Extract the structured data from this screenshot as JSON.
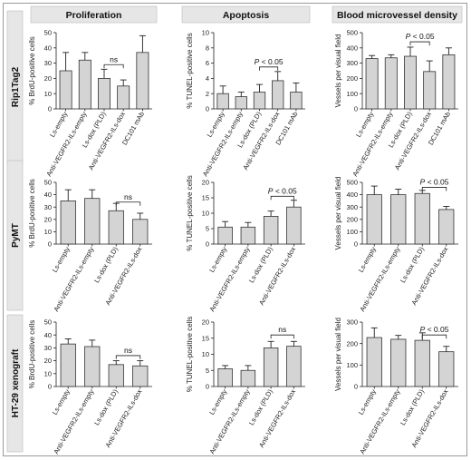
{
  "column_headers": [
    "Proliferation",
    "Apoptosis",
    "Blood microvessel density"
  ],
  "row_labels": [
    "Rip1Tag2",
    "PyMT",
    "HT-29 xenograft"
  ],
  "colors": {
    "bar_fill": "#d4d4d4",
    "bar_stroke": "#333333",
    "header_fill": "#e6e6e6",
    "row_fill": "#e6e6e6"
  },
  "chart_data": [
    {
      "type": "bar",
      "row": 0,
      "col": 0,
      "ylabel": "% BrdU-positive cells",
      "ylim": [
        0,
        50
      ],
      "yticks": [
        0,
        10,
        20,
        30,
        40,
        50
      ],
      "categories": [
        "Ls-empty",
        "Anti-VEGFR2-ILs-empty",
        "Ls-dox (PLD)",
        "Anti-VEGFR2-ILs-dox",
        "DC101 mAb"
      ],
      "values": [
        25,
        32,
        20,
        15,
        37
      ],
      "errors": [
        12,
        5,
        6,
        4,
        11
      ],
      "annotation": {
        "text": "ns",
        "from": 2,
        "to": 3,
        "y": 29,
        "italic_p": false
      }
    },
    {
      "type": "bar",
      "row": 0,
      "col": 1,
      "ylabel": "% TUNEL-positive cells",
      "ylim": [
        0,
        10
      ],
      "yticks": [
        0,
        2,
        4,
        6,
        8,
        10
      ],
      "categories": [
        "Ls-empty",
        "Anti-VEGFR2-ILs-empty",
        "Ls-dox (PLD)",
        "Anti-VEGFR2-ILs-dox",
        "DC101 mAb"
      ],
      "values": [
        2.0,
        1.6,
        2.2,
        3.7,
        2.2
      ],
      "errors": [
        1.0,
        0.6,
        1.0,
        1.2,
        1.2
      ],
      "annotation": {
        "text": "P < 0.05",
        "from": 2,
        "to": 3,
        "y": 5.5,
        "italic_p": true
      }
    },
    {
      "type": "bar",
      "row": 0,
      "col": 2,
      "ylabel": "Vessels per visual field",
      "ylim": [
        0,
        500
      ],
      "yticks": [
        0,
        100,
        200,
        300,
        400,
        500
      ],
      "categories": [
        "Ls-empty",
        "Anti-VEGFR2-ILs-empty",
        "Ls-dox (PLD)",
        "Anti-VEGFR2-ILs-dox",
        "DC101 mAb"
      ],
      "values": [
        330,
        335,
        345,
        245,
        355
      ],
      "errors": [
        20,
        20,
        60,
        70,
        45
      ],
      "annotation": {
        "text": "P < 0.05",
        "from": 2,
        "to": 3,
        "y": 440,
        "italic_p": true
      }
    },
    {
      "type": "bar",
      "row": 1,
      "col": 0,
      "ylabel": "% BrdU-positive cells",
      "ylim": [
        0,
        50
      ],
      "yticks": [
        0,
        10,
        20,
        30,
        40,
        50
      ],
      "categories": [
        "Ls-empty",
        "Anti-VEGFR2-ILs-empty",
        "Ls-dox (PLD)",
        "Anti-VEGFR2-ILs-dox"
      ],
      "values": [
        35,
        37,
        27,
        20
      ],
      "errors": [
        9,
        7,
        6,
        5
      ],
      "annotation": {
        "text": "ns",
        "from": 2,
        "to": 3,
        "y": 34,
        "italic_p": false
      }
    },
    {
      "type": "bar",
      "row": 1,
      "col": 1,
      "ylabel": "% TUNEL-positive cells",
      "ylim": [
        0,
        20
      ],
      "yticks": [
        0,
        5,
        10,
        15,
        20
      ],
      "categories": [
        "Ls-empty",
        "Anti-VEGFR2-ILs-empty",
        "Ls-dox (PLD)",
        "Anti-VEGFR2-ILs-dox"
      ],
      "values": [
        5.5,
        5.5,
        9.0,
        12.0
      ],
      "errors": [
        1.8,
        1.5,
        1.7,
        2.2
      ],
      "annotation": {
        "text": "P < 0.05",
        "from": 2,
        "to": 3,
        "y": 15.5,
        "italic_p": true
      }
    },
    {
      "type": "bar",
      "row": 1,
      "col": 2,
      "ylabel": "Vessels per visual field",
      "ylim": [
        0,
        500
      ],
      "yticks": [
        0,
        100,
        200,
        300,
        400,
        500
      ],
      "categories": [
        "Ls-empty",
        "Anti-VEGFR2-ILs-empty",
        "Ls-dox (PLD)",
        "Anti-VEGFR2-ILs-dox"
      ],
      "values": [
        400,
        400,
        410,
        280
      ],
      "errors": [
        70,
        45,
        25,
        25
      ],
      "annotation": {
        "text": "P < 0.05",
        "from": 2,
        "to": 3,
        "y": 460,
        "italic_p": true
      }
    },
    {
      "type": "bar",
      "row": 2,
      "col": 0,
      "ylabel": "% BrdU-positive cells",
      "ylim": [
        0,
        50
      ],
      "yticks": [
        0,
        10,
        20,
        30,
        40,
        50
      ],
      "categories": [
        "Ls-empty",
        "Anti-VEGFR2-ILs-empty",
        "Ls-dox (PLD)",
        "Anti-VEGFR2-ILs-dox"
      ],
      "values": [
        33,
        31,
        17,
        16
      ],
      "errors": [
        4,
        5,
        3,
        4
      ],
      "annotation": {
        "text": "ns",
        "from": 2,
        "to": 3,
        "y": 24,
        "italic_p": false
      }
    },
    {
      "type": "bar",
      "row": 2,
      "col": 1,
      "ylabel": "% TUNEL-positive cells",
      "ylim": [
        0,
        20
      ],
      "yticks": [
        0,
        5,
        10,
        15,
        20
      ],
      "categories": [
        "Ls-empty",
        "Anti-VEGFR2-ILs-empty",
        "Ls-dox (PLD)",
        "Anti-VEGFR2-ILs-dox"
      ],
      "values": [
        5.5,
        5.0,
        12.0,
        12.5
      ],
      "errors": [
        1.0,
        1.5,
        2.0,
        1.5
      ],
      "annotation": {
        "text": "ns",
        "from": 2,
        "to": 3,
        "y": 16,
        "italic_p": false
      }
    },
    {
      "type": "bar",
      "row": 2,
      "col": 2,
      "ylabel": "Vessels per visual field",
      "ylim": [
        0,
        300
      ],
      "yticks": [
        0,
        100,
        200,
        300
      ],
      "categories": [
        "Ls-empty",
        "Anti-VEGFR2-ILs-empty",
        "Ls-dox (PLD)",
        "Anti-VEGFR2-ILs-dox"
      ],
      "values": [
        228,
        220,
        215,
        162
      ],
      "errors": [
        45,
        18,
        35,
        25
      ],
      "annotation": {
        "text": "P < 0.05",
        "from": 2,
        "to": 3,
        "y": 240,
        "italic_p": true
      }
    }
  ]
}
